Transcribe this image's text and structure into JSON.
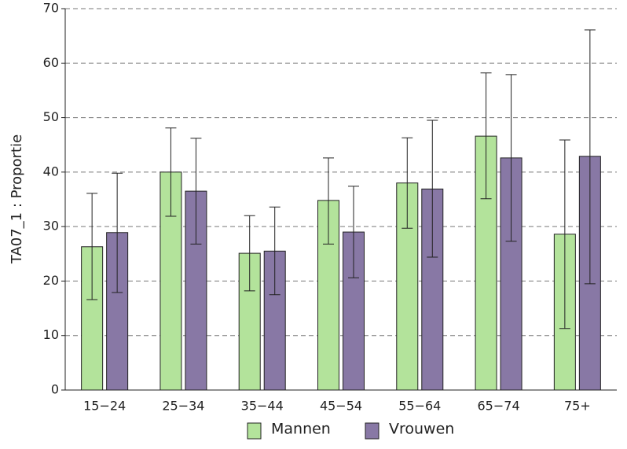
{
  "chart_data": {
    "type": "bar",
    "y_label": "TA07_1 : Proportie",
    "categories": [
      "15−24",
      "25−34",
      "35−44",
      "45−54",
      "55−64",
      "65−74",
      "75+"
    ],
    "series": [
      {
        "name": "Mannen",
        "color": "#b3e39b",
        "values": [
          26.3,
          40.0,
          25.1,
          34.8,
          38.0,
          46.6,
          28.6
        ],
        "lower": [
          16.6,
          31.9,
          18.2,
          26.8,
          29.7,
          35.1,
          11.3
        ],
        "upper": [
          36.1,
          48.1,
          32.0,
          42.6,
          46.3,
          58.2,
          45.9
        ]
      },
      {
        "name": "Vrouwen",
        "color": "#8878a5",
        "values": [
          28.9,
          36.5,
          25.5,
          29.0,
          36.9,
          42.6,
          42.9
        ],
        "lower": [
          17.9,
          26.8,
          17.5,
          20.6,
          24.4,
          27.3,
          19.5
        ],
        "upper": [
          39.8,
          46.2,
          33.6,
          37.4,
          49.5,
          57.9,
          66.1
        ]
      }
    ],
    "ylim": [
      0,
      70
    ],
    "yticks": [
      0,
      10,
      20,
      30,
      40,
      50,
      60,
      70
    ],
    "grid": true,
    "legend": "bottom"
  }
}
